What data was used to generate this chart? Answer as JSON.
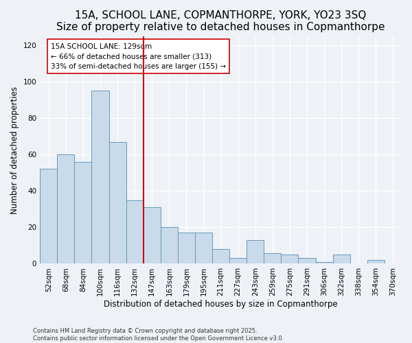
{
  "title": "15A, SCHOOL LANE, COPMANTHORPE, YORK, YO23 3SQ",
  "subtitle": "Size of property relative to detached houses in Copmanthorpe",
  "xlabel": "Distribution of detached houses by size in Copmanthorpe",
  "ylabel": "Number of detached properties",
  "bar_labels": [
    "52sqm",
    "68sqm",
    "84sqm",
    "100sqm",
    "116sqm",
    "132sqm",
    "147sqm",
    "163sqm",
    "179sqm",
    "195sqm",
    "211sqm",
    "227sqm",
    "243sqm",
    "259sqm",
    "275sqm",
    "291sqm",
    "306sqm",
    "322sqm",
    "338sqm",
    "354sqm",
    "370sqm"
  ],
  "bar_values": [
    52,
    60,
    56,
    95,
    67,
    35,
    31,
    20,
    17,
    17,
    8,
    3,
    13,
    6,
    5,
    3,
    1,
    5,
    0,
    2,
    0
  ],
  "bar_color": "#c9daea",
  "bar_edge_color": "#6699bb",
  "vline_x": 5.5,
  "vline_color": "#cc0000",
  "annotation_title": "15A SCHOOL LANE: 129sqm",
  "annotation_line1": "← 66% of detached houses are smaller (313)",
  "annotation_line2": "33% of semi-detached houses are larger (155) →",
  "annotation_box_color": "#ffffff",
  "annotation_box_edge": "#cc0000",
  "ylim": [
    0,
    125
  ],
  "yticks": [
    0,
    20,
    40,
    60,
    80,
    100,
    120
  ],
  "background_color": "#eef2f7",
  "footer_line1": "Contains HM Land Registry data © Crown copyright and database right 2025.",
  "footer_line2": "Contains public sector information licensed under the Open Government Licence v3.0.",
  "title_fontsize": 11,
  "label_fontsize": 7.5
}
